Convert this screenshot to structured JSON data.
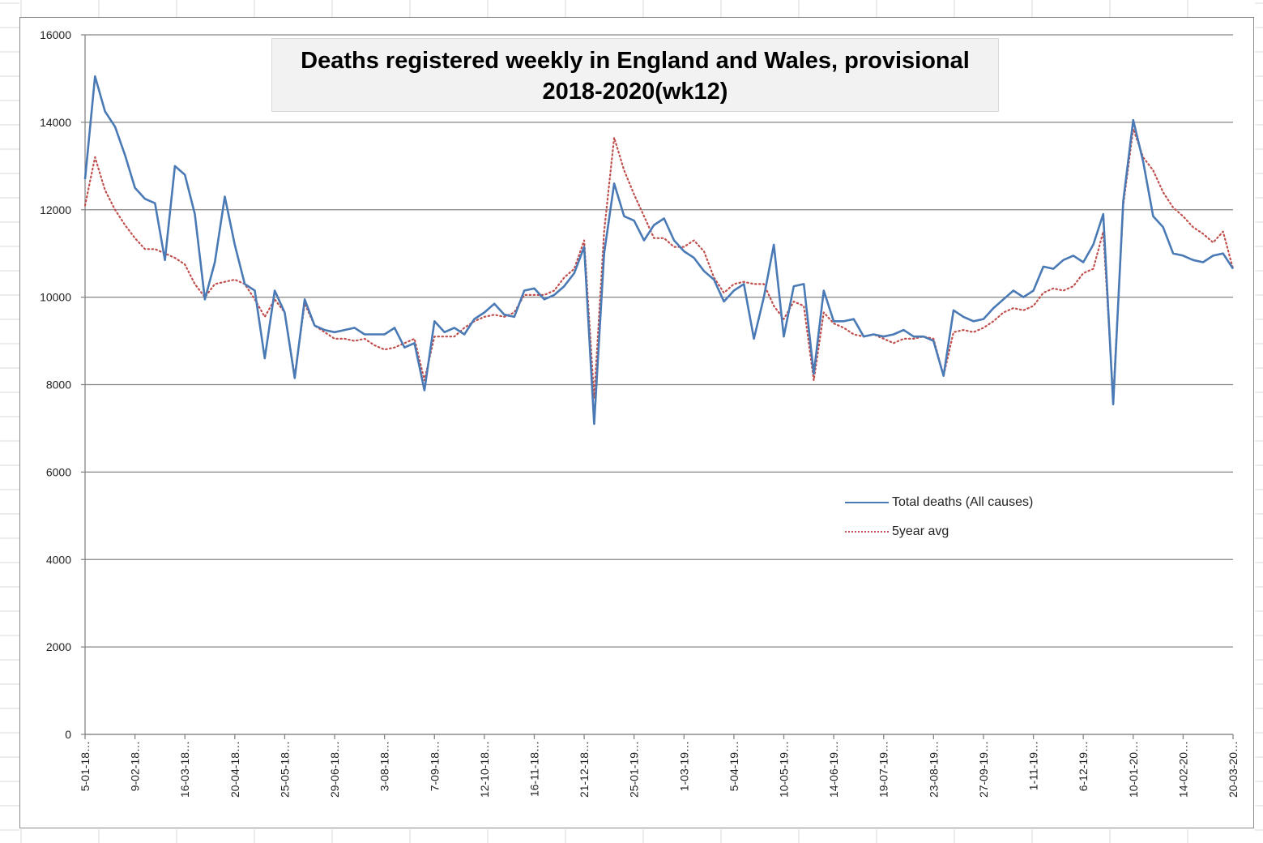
{
  "chart_data": {
    "type": "line",
    "title": "Deaths registered weekly in England and Wales, provisional 2018-2020(wk12)",
    "title_lines": [
      "Deaths registered weekly in England and Wales, provisional",
      "2018-2020(wk12)"
    ],
    "xlabel": "",
    "ylabel": "",
    "ylim": [
      0,
      16000
    ],
    "yticks": [
      0,
      2000,
      4000,
      6000,
      8000,
      10000,
      12000,
      14000,
      16000
    ],
    "grid": true,
    "legend_position": "center-right",
    "x_tick_labels": [
      "5-01-18…",
      "9-02-18…",
      "16-03-18…",
      "20-04-18…",
      "25-05-18…",
      "29-06-18…",
      "3-08-18…",
      "7-09-18…",
      "12-10-18…",
      "16-11-18…",
      "21-12-18…",
      "25-01-19…",
      "1-03-19…",
      "5-04-19…",
      "10-05-19…",
      "14-06-19…",
      "19-07-19…",
      "23-08-19…",
      "27-09-19…",
      "1-11-19…",
      "6-12-19…",
      "10-01-20…",
      "14-02-20…",
      "20-03-20…"
    ],
    "x_tick_every_weeks": 5,
    "n_points": 116,
    "series": [
      {
        "name": "Total deaths (All causes)",
        "style": "solid",
        "color": "#4a7ab5",
        "values": [
          12700,
          15050,
          14250,
          13900,
          13250,
          12500,
          12250,
          12150,
          10850,
          13000,
          12800,
          11900,
          9950,
          10800,
          12300,
          11200,
          10300,
          10150,
          8600,
          10150,
          9650,
          8150,
          9950,
          9350,
          9250,
          9200,
          9250,
          9300,
          9150,
          9150,
          9150,
          9300,
          8850,
          8950,
          7870,
          9450,
          9200,
          9300,
          9150,
          9500,
          9650,
          9850,
          9600,
          9550,
          10150,
          10200,
          9950,
          10050,
          10250,
          10550,
          11150,
          7100,
          11000,
          12600,
          11850,
          11750,
          11300,
          11650,
          11800,
          11300,
          11050,
          10900,
          10600,
          10400,
          9900,
          10150,
          10300,
          9050,
          10000,
          11200,
          9100,
          10250,
          10300,
          8250,
          10150,
          9450,
          9450,
          9500,
          9100,
          9150,
          9100,
          9150,
          9250,
          9100,
          9100,
          9000,
          8200,
          9700,
          9550,
          9450,
          9500,
          9750,
          9950,
          10150,
          10000,
          10150,
          10700,
          10650,
          10850,
          10950,
          10800,
          11200,
          11900,
          7550,
          12200,
          14050,
          13100,
          11850,
          11600,
          11000,
          10950,
          10850,
          10800,
          10950,
          11000,
          10650
        ]
      },
      {
        "name": "5year avg",
        "style": "dotted",
        "color": "#c0504d",
        "values": [
          12100,
          13200,
          12450,
          12000,
          11650,
          11350,
          11100,
          11100,
          11000,
          10900,
          10750,
          10300,
          10000,
          10300,
          10350,
          10400,
          10300,
          9950,
          9550,
          9950,
          9650,
          8200,
          9850,
          9350,
          9200,
          9050,
          9050,
          9000,
          9050,
          8900,
          8800,
          8850,
          8950,
          9050,
          8100,
          9100,
          9100,
          9100,
          9300,
          9450,
          9550,
          9600,
          9550,
          9650,
          10050,
          10050,
          10050,
          10150,
          10450,
          10650,
          11300,
          7700,
          11500,
          13650,
          12900,
          12350,
          11850,
          11350,
          11350,
          11150,
          11150,
          11300,
          11050,
          10450,
          10100,
          10300,
          10350,
          10300,
          10300,
          9800,
          9500,
          9900,
          9800,
          8100,
          9650,
          9400,
          9300,
          9150,
          9100,
          9150,
          9050,
          8950,
          9050,
          9050,
          9100,
          9050,
          8200,
          9200,
          9250,
          9200,
          9300,
          9450,
          9650,
          9750,
          9700,
          9800,
          10100,
          10200,
          10150,
          10250,
          10550,
          10650,
          11500,
          7700,
          12100,
          13850,
          13200,
          12900,
          12400,
          12050,
          11850,
          11600,
          11450,
          11250,
          11500,
          10650
        ]
      }
    ]
  }
}
